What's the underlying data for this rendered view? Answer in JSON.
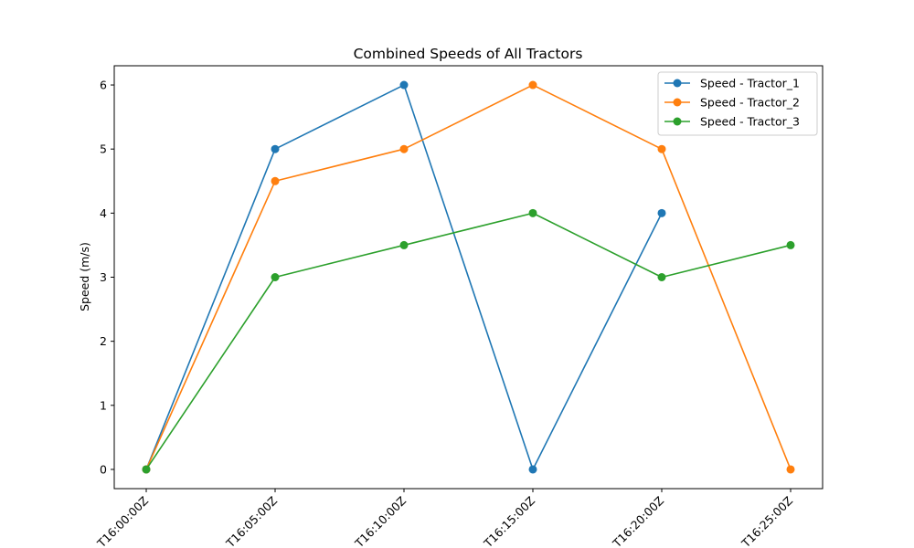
{
  "chart_data": {
    "type": "line",
    "title": "Combined Speeds of All Tractors",
    "xlabel": "",
    "ylabel": "Speed (m/s)",
    "categories": [
      "T16:00:00Z",
      "T16:05:00Z",
      "T16:10:00Z",
      "T16:15:00Z",
      "T16:20:00Z",
      "T16:25:00Z"
    ],
    "x_tick_labels": [
      "T16:00:00Z",
      "T16:05:00Z",
      "T16:10:00Z",
      "T16:15:00Z",
      "T16:20:00Z",
      "T16:25:00Z"
    ],
    "ylim": [
      -0.3,
      6.3
    ],
    "yticks": [
      0,
      1,
      2,
      3,
      4,
      5,
      6
    ],
    "grid": false,
    "legend_position": "top-right",
    "series": [
      {
        "name": "Speed - Tractor_1",
        "color": "#1f77b4",
        "values": [
          0,
          5,
          6,
          0,
          4,
          null
        ]
      },
      {
        "name": "Speed - Tractor_2",
        "color": "#ff7f0e",
        "values": [
          0,
          4.5,
          5,
          6,
          5,
          0
        ]
      },
      {
        "name": "Speed - Tractor_3",
        "color": "#2ca02c",
        "values": [
          0,
          3,
          3.5,
          4,
          3,
          3.5
        ]
      }
    ]
  }
}
